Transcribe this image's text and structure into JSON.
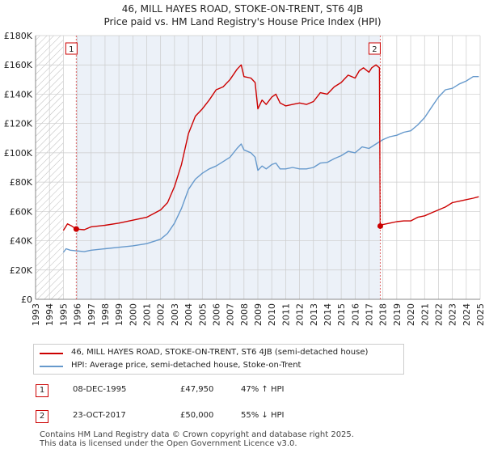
{
  "title": "46, MILL HAYES ROAD, STOKE-ON-TRENT, ST6 4JB",
  "subtitle": "Price paid vs. HM Land Registry's House Price Index (HPI)",
  "colors": {
    "property_line": "#cc0000",
    "hpi_line": "#6699cc",
    "marker_vline": "#e06666",
    "shade": "#dde6f3",
    "grid": "#cccccc"
  },
  "chart_data": {
    "type": "line",
    "title": "46, MILL HAYES ROAD, STOKE-ON-TRENT, ST6 4JB",
    "subtitle": "Price paid vs. HM Land Registry's House Price Index (HPI)",
    "xlabel": "",
    "ylabel": "",
    "xlim": [
      1993,
      2025
    ],
    "ylim": [
      0,
      180000
    ],
    "x_ticks": [
      1993,
      1994,
      1995,
      1996,
      1997,
      1998,
      1999,
      2000,
      2001,
      2002,
      2003,
      2004,
      2005,
      2006,
      2007,
      2008,
      2009,
      2010,
      2011,
      2012,
      2013,
      2014,
      2015,
      2016,
      2017,
      2018,
      2019,
      2020,
      2021,
      2022,
      2023,
      2024,
      2025
    ],
    "y_ticks": [
      {
        "value": 0,
        "label": "£0"
      },
      {
        "value": 20000,
        "label": "£20K"
      },
      {
        "value": 40000,
        "label": "£40K"
      },
      {
        "value": 60000,
        "label": "£60K"
      },
      {
        "value": 80000,
        "label": "£80K"
      },
      {
        "value": 100000,
        "label": "£100K"
      },
      {
        "value": 120000,
        "label": "£120K"
      },
      {
        "value": 140000,
        "label": "£140K"
      },
      {
        "value": 160000,
        "label": "£160K"
      },
      {
        "value": 180000,
        "label": "£180K"
      }
    ],
    "grid": true,
    "hatched_ranges": [
      [
        1993,
        1995
      ]
    ],
    "shaded_ranges": [
      [
        1995.93,
        2017.81
      ]
    ],
    "series": [
      {
        "name": "46, MILL HAYES ROAD, STOKE-ON-TRENT, ST6 4JB (semi-detached house)",
        "color": "#cc0000",
        "points": [
          [
            1995.0,
            47000
          ],
          [
            1995.3,
            51500
          ],
          [
            1995.6,
            50000
          ],
          [
            1995.93,
            47950
          ],
          [
            1996.5,
            47500
          ],
          [
            1997.0,
            49500
          ],
          [
            1998.0,
            50500
          ],
          [
            1999.0,
            52000
          ],
          [
            2000.0,
            54000
          ],
          [
            2001.0,
            56000
          ],
          [
            2002.0,
            61000
          ],
          [
            2002.5,
            66000
          ],
          [
            2003.0,
            77000
          ],
          [
            2003.5,
            92000
          ],
          [
            2004.0,
            113000
          ],
          [
            2004.5,
            125000
          ],
          [
            2005.0,
            130000
          ],
          [
            2005.5,
            136000
          ],
          [
            2006.0,
            143000
          ],
          [
            2006.5,
            145000
          ],
          [
            2007.0,
            150000
          ],
          [
            2007.5,
            157000
          ],
          [
            2007.8,
            160000
          ],
          [
            2008.0,
            152000
          ],
          [
            2008.5,
            151000
          ],
          [
            2008.8,
            148000
          ],
          [
            2009.0,
            130000
          ],
          [
            2009.3,
            136000
          ],
          [
            2009.6,
            133000
          ],
          [
            2010.0,
            138000
          ],
          [
            2010.3,
            140000
          ],
          [
            2010.6,
            134000
          ],
          [
            2011.0,
            132000
          ],
          [
            2011.5,
            133000
          ],
          [
            2012.0,
            134000
          ],
          [
            2012.5,
            133000
          ],
          [
            2013.0,
            135000
          ],
          [
            2013.5,
            141000
          ],
          [
            2014.0,
            140000
          ],
          [
            2014.5,
            145000
          ],
          [
            2015.0,
            148000
          ],
          [
            2015.5,
            153000
          ],
          [
            2016.0,
            151000
          ],
          [
            2016.3,
            156000
          ],
          [
            2016.6,
            158000
          ],
          [
            2017.0,
            155000
          ],
          [
            2017.2,
            158000
          ],
          [
            2017.5,
            160000
          ],
          [
            2017.75,
            158000
          ],
          [
            2017.81,
            50000
          ],
          [
            2018.0,
            51000
          ],
          [
            2018.5,
            52000
          ],
          [
            2019.0,
            53000
          ],
          [
            2019.5,
            53500
          ],
          [
            2020.0,
            53500
          ],
          [
            2020.5,
            56000
          ],
          [
            2021.0,
            57000
          ],
          [
            2021.5,
            59000
          ],
          [
            2022.0,
            61000
          ],
          [
            2022.5,
            63000
          ],
          [
            2023.0,
            66000
          ],
          [
            2023.5,
            67000
          ],
          [
            2024.0,
            68000
          ],
          [
            2024.5,
            69000
          ],
          [
            2024.9,
            70000
          ]
        ]
      },
      {
        "name": "HPI: Average price, semi-detached house, Stoke-on-Trent",
        "color": "#6699cc",
        "points": [
          [
            1995.0,
            32000
          ],
          [
            1995.2,
            34500
          ],
          [
            1995.5,
            33500
          ],
          [
            1996.0,
            33000
          ],
          [
            1996.5,
            32500
          ],
          [
            1997.0,
            33500
          ],
          [
            1998.0,
            34500
          ],
          [
            1999.0,
            35500
          ],
          [
            2000.0,
            36500
          ],
          [
            2001.0,
            38000
          ],
          [
            2002.0,
            41000
          ],
          [
            2002.5,
            45000
          ],
          [
            2003.0,
            52000
          ],
          [
            2003.5,
            62000
          ],
          [
            2004.0,
            75000
          ],
          [
            2004.5,
            82000
          ],
          [
            2005.0,
            86000
          ],
          [
            2005.5,
            89000
          ],
          [
            2006.0,
            91000
          ],
          [
            2006.5,
            94000
          ],
          [
            2007.0,
            97000
          ],
          [
            2007.5,
            103000
          ],
          [
            2007.8,
            106000
          ],
          [
            2008.0,
            102000
          ],
          [
            2008.5,
            100000
          ],
          [
            2008.8,
            97000
          ],
          [
            2009.0,
            88000
          ],
          [
            2009.3,
            91000
          ],
          [
            2009.6,
            89000
          ],
          [
            2010.0,
            92000
          ],
          [
            2010.3,
            93000
          ],
          [
            2010.6,
            89000
          ],
          [
            2011.0,
            89000
          ],
          [
            2011.5,
            90000
          ],
          [
            2012.0,
            89000
          ],
          [
            2012.5,
            89000
          ],
          [
            2013.0,
            90000
          ],
          [
            2013.5,
            93000
          ],
          [
            2014.0,
            93500
          ],
          [
            2014.5,
            96000
          ],
          [
            2015.0,
            98000
          ],
          [
            2015.5,
            101000
          ],
          [
            2016.0,
            100000
          ],
          [
            2016.5,
            104000
          ],
          [
            2017.0,
            103000
          ],
          [
            2017.5,
            106000
          ],
          [
            2018.0,
            109000
          ],
          [
            2018.5,
            111000
          ],
          [
            2019.0,
            112000
          ],
          [
            2019.5,
            114000
          ],
          [
            2020.0,
            115000
          ],
          [
            2020.5,
            119000
          ],
          [
            2021.0,
            124000
          ],
          [
            2021.5,
            131000
          ],
          [
            2022.0,
            138000
          ],
          [
            2022.5,
            143000
          ],
          [
            2023.0,
            144000
          ],
          [
            2023.5,
            147000
          ],
          [
            2024.0,
            149000
          ],
          [
            2024.5,
            152000
          ],
          [
            2024.9,
            152000
          ]
        ]
      }
    ],
    "markers": [
      {
        "label": "1",
        "x": 1995.93,
        "y": 47950
      },
      {
        "label": "2",
        "x": 2017.81,
        "y": 50000
      }
    ]
  },
  "legend": {
    "items": [
      {
        "label": "46, MILL HAYES ROAD, STOKE-ON-TRENT, ST6 4JB (semi-detached house)",
        "color": "#cc0000"
      },
      {
        "label": "HPI: Average price, semi-detached house, Stoke-on-Trent",
        "color": "#6699cc"
      }
    ]
  },
  "transactions": [
    {
      "num": "1",
      "date": "08-DEC-1995",
      "price": "£47,950",
      "hpi": "47% ↑ HPI"
    },
    {
      "num": "2",
      "date": "23-OCT-2017",
      "price": "£50,000",
      "hpi": "55% ↓ HPI"
    }
  ],
  "footer": {
    "line1": "Contains HM Land Registry data © Crown copyright and database right 2025.",
    "line2": "This data is licensed under the Open Government Licence v3.0."
  }
}
